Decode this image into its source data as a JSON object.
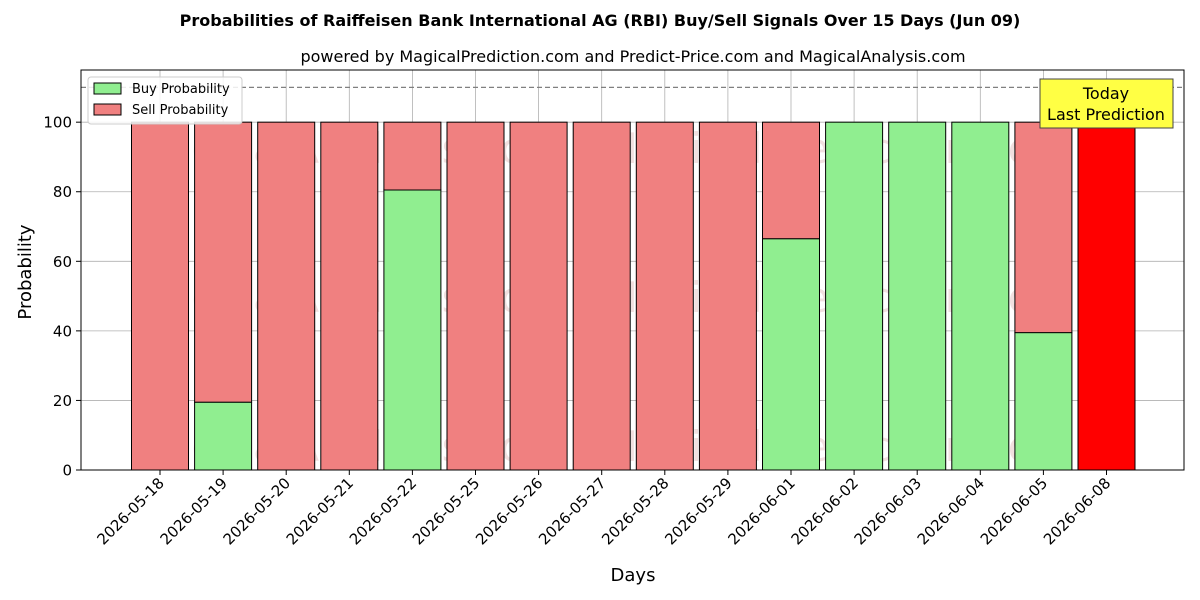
{
  "chart_data": {
    "type": "bar",
    "stacked": true,
    "title": "Probabilities of Raiffeisen Bank International AG (RBI) Buy/Sell Signals Over 15 Days (Jun 09)",
    "subtitle": "powered by MagicalPrediction.com and Predict-Price.com and MagicalAnalysis.com",
    "xlabel": "Days",
    "ylabel": "Probability",
    "ylim": [
      0,
      115
    ],
    "yticks": [
      0,
      20,
      40,
      60,
      80,
      100
    ],
    "grid": true,
    "legend_position": "top-left",
    "reference_line": 110,
    "categories": [
      "2026-05-18",
      "2026-05-19",
      "2026-05-20",
      "2026-05-21",
      "2026-05-22",
      "2026-05-25",
      "2026-05-26",
      "2026-05-27",
      "2026-05-28",
      "2026-05-29",
      "2026-06-01",
      "2026-06-02",
      "2026-06-03",
      "2026-06-04",
      "2026-06-05",
      "2026-06-08"
    ],
    "series": [
      {
        "name": "Buy Probability",
        "color": "#90ee90",
        "values": [
          0,
          19.5,
          0,
          0,
          80.5,
          0,
          0,
          0,
          0,
          0,
          66.5,
          100,
          100,
          100,
          39.5,
          0
        ]
      },
      {
        "name": "Sell Probability",
        "color": "#f08080",
        "values": [
          100,
          80.5,
          100,
          100,
          19.5,
          100,
          100,
          100,
          100,
          100,
          33.5,
          0,
          0,
          0,
          60.5,
          100
        ]
      }
    ],
    "highlight": {
      "index": 15,
      "color": "#ff0000"
    },
    "annotation": {
      "lines": [
        "Today",
        "Last Prediction"
      ],
      "background": "#ffff44"
    },
    "watermarks": [
      "MagicalAnalysis.com",
      "MagicalPrediction.com"
    ]
  }
}
